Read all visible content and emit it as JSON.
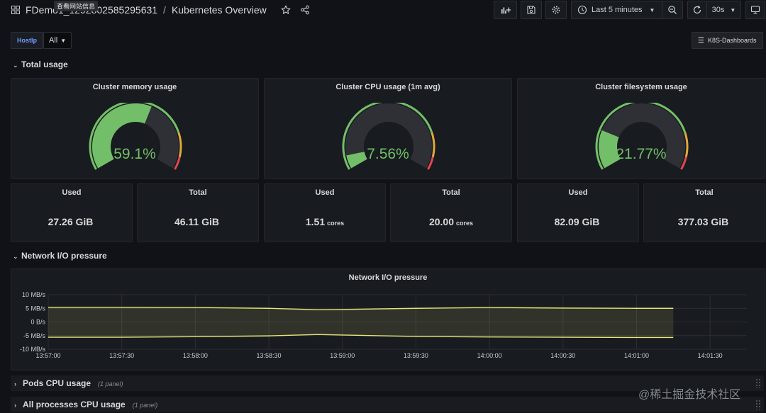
{
  "nav": {
    "folder": "FDemo1_1292802585295631",
    "separator": "/",
    "dashboard_title": "Kubernetes Overview",
    "tooltip": "查看网站信息",
    "time_range_label": "Last 5 minutes",
    "refresh_interval": "30s"
  },
  "variables": {
    "label": "HostIp",
    "value": "All",
    "dashboards_link": "K8S-Dashboards"
  },
  "rows": {
    "total_usage": "Total usage",
    "network": "Network I/O pressure",
    "pods_cpu": {
      "title": "Pods CPU usage",
      "count": "(1 panel)"
    },
    "processes_cpu": {
      "title": "All processes CPU usage",
      "count": "(1 panel)"
    }
  },
  "gauges": [
    {
      "title": "Cluster memory usage",
      "value_text": "59.1%",
      "fraction": 0.591
    },
    {
      "title": "Cluster CPU usage (1m avg)",
      "value_text": "7.56%",
      "fraction": 0.0756
    },
    {
      "title": "Cluster filesystem usage",
      "value_text": "21.77%",
      "fraction": 0.2177
    }
  ],
  "stats": [
    {
      "title": "Used",
      "value": "27.26 GiB",
      "unit": ""
    },
    {
      "title": "Total",
      "value": "46.11 GiB",
      "unit": ""
    },
    {
      "title": "Used",
      "value": "1.51",
      "unit": "cores"
    },
    {
      "title": "Total",
      "value": "20.00",
      "unit": "cores"
    },
    {
      "title": "Used",
      "value": "82.09 GiB",
      "unit": ""
    },
    {
      "title": "Total",
      "value": "377.03 GiB",
      "unit": ""
    }
  ],
  "colors": {
    "gauge_ok": "#73bf69",
    "gauge_warn": "#e0a93b",
    "gauge_crit": "#e0474f",
    "series": "#e5e57a",
    "accent": "#6e9fff"
  },
  "watermark": "@稀土掘金技术社区",
  "chart_data": {
    "type": "area",
    "title": "Network I/O pressure",
    "y_ticks": [
      "10 MB/s",
      "5 MB/s",
      "0 B/s",
      "-5 MB/s",
      "-10 MB/s"
    ],
    "ylim": [
      -10,
      10
    ],
    "x_ticks": [
      "13:57:00",
      "13:57:30",
      "13:58:00",
      "13:58:30",
      "13:59:00",
      "13:59:30",
      "14:00:00",
      "14:00:30",
      "14:01:00",
      "14:01:30"
    ],
    "xlim": [
      "13:57:00",
      "14:01:45"
    ],
    "grid": true,
    "series": [
      {
        "values": [
          [
            "13:57:00",
            5.4
          ],
          [
            "13:57:30",
            5.4
          ],
          [
            "13:58:00",
            5.3
          ],
          [
            "13:58:30",
            5.0
          ],
          [
            "13:58:50",
            4.5
          ],
          [
            "13:59:00",
            4.6
          ],
          [
            "13:59:30",
            5.0
          ],
          [
            "14:00:00",
            5.3
          ],
          [
            "14:00:30",
            5.1
          ],
          [
            "14:01:00",
            5.0
          ],
          [
            "14:01:15",
            5.0
          ]
        ]
      },
      {
        "values": [
          [
            "13:57:00",
            -5.6
          ],
          [
            "13:57:30",
            -5.6
          ],
          [
            "13:58:00",
            -5.4
          ],
          [
            "13:58:30",
            -5.1
          ],
          [
            "13:58:50",
            -4.6
          ],
          [
            "13:59:00",
            -4.8
          ],
          [
            "13:59:30",
            -5.3
          ],
          [
            "14:00:00",
            -5.5
          ],
          [
            "14:00:30",
            -5.6
          ],
          [
            "14:01:00",
            -5.7
          ],
          [
            "14:01:15",
            -5.7
          ]
        ]
      }
    ]
  }
}
